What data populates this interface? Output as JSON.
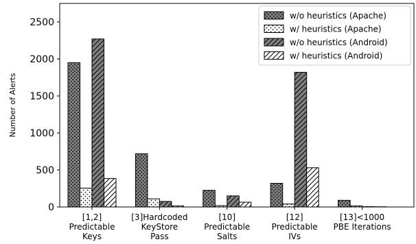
{
  "chart_data": {
    "type": "bar",
    "title": "",
    "xlabel": "",
    "ylabel": "Number of Alerts",
    "ylim": [
      0,
      2750
    ],
    "yticks": [
      0,
      500,
      1000,
      1500,
      2000,
      2500
    ],
    "grid": false,
    "legend_position": "top-right",
    "categories": [
      [
        "[1,2]",
        "Predictable",
        "Keys"
      ],
      [
        "[3]Hardcoded",
        "KeyStore",
        "Pass"
      ],
      [
        "[10]",
        "Predictable",
        "Salts"
      ],
      [
        "[12]",
        "Predictable",
        "IVs"
      ],
      [
        "[13]<1000",
        "PBE Iterations"
      ]
    ],
    "series": [
      {
        "name": "w/o heuristics (Apache)",
        "values": [
          1950,
          720,
          225,
          320,
          90
        ],
        "color": "#808080",
        "pattern": "dots-dense"
      },
      {
        "name": "w/ heuristics (Apache)",
        "values": [
          255,
          110,
          18,
          40,
          15
        ],
        "color": "#ffffff",
        "pattern": "dots-sparse"
      },
      {
        "name": "w/o heuristics (Android)",
        "values": [
          2270,
          75,
          150,
          1820,
          5
        ],
        "color": "#808080",
        "pattern": "hatch"
      },
      {
        "name": "w/ heuristics (Android)",
        "values": [
          385,
          15,
          65,
          530,
          3
        ],
        "color": "#ffffff",
        "pattern": "hatch"
      }
    ]
  }
}
